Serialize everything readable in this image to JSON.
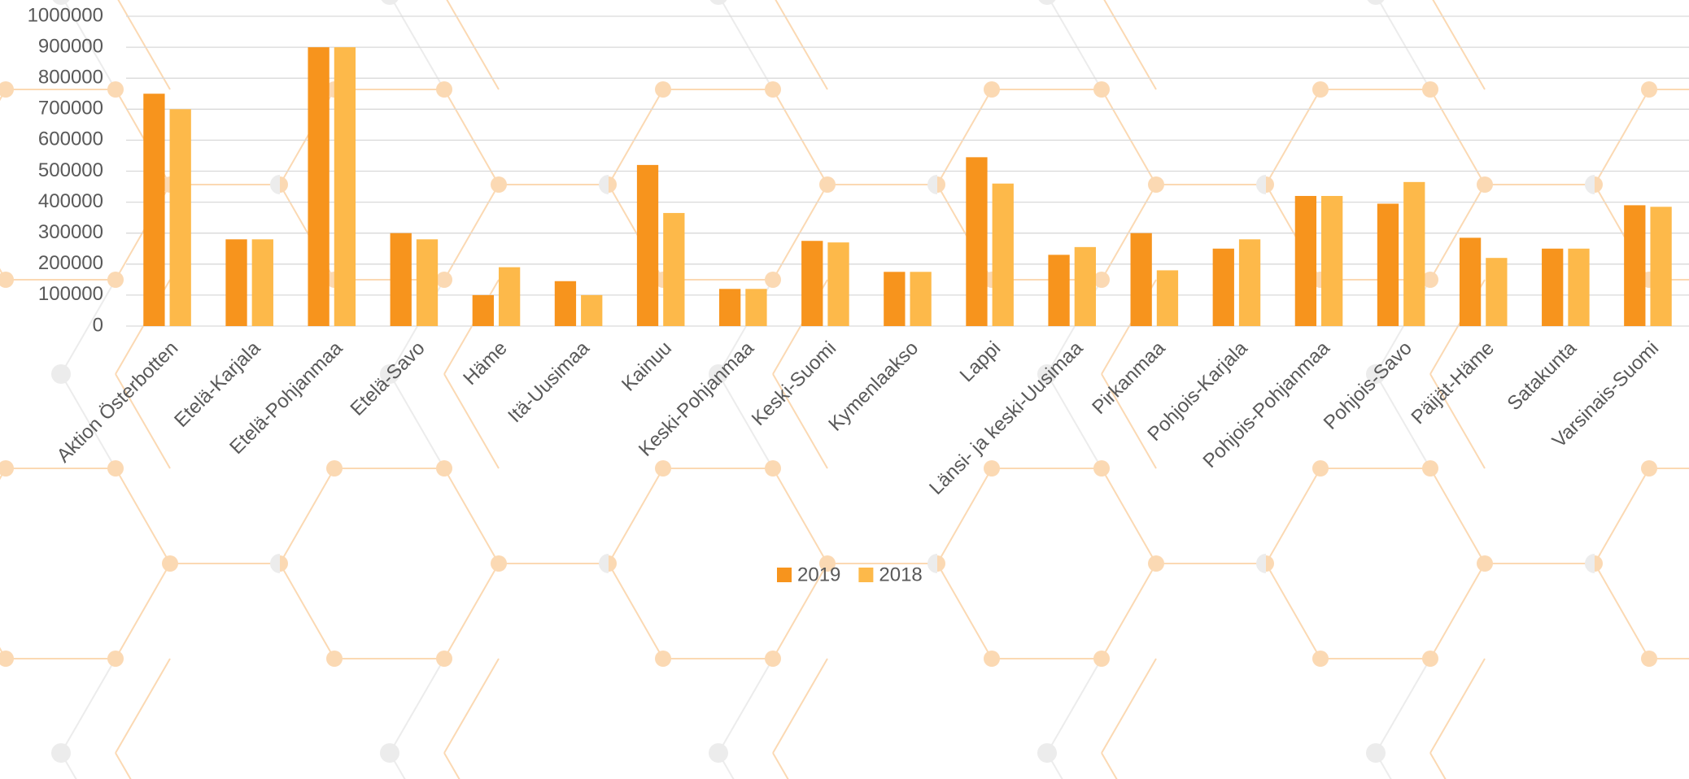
{
  "chart_data": {
    "type": "bar",
    "categories": [
      "Aktion Österbotten",
      "Etelä-Karjala",
      "Etelä-Pohjanmaa",
      "Etelä-Savo",
      "Häme",
      "Itä-Uusimaa",
      "Kainuu",
      "Keski-Pohjanmaa",
      "Keski-Suomi",
      "Kymenlaakso",
      "Lappi",
      "Länsi- ja keski-Uusimaa",
      "Pirkanmaa",
      "Pohjois-Karjala",
      "Pohjois-Pohjanmaa",
      "Pohjois-Savo",
      "Päijät-Häme",
      "Satakunta",
      "Varsinais-Suomi"
    ],
    "series": [
      {
        "name": "2019",
        "color": "#f7941d",
        "values": [
          750000,
          280000,
          900000,
          300000,
          100000,
          145000,
          520000,
          120000,
          275000,
          175000,
          545000,
          230000,
          300000,
          250000,
          420000,
          395000,
          285000,
          250000,
          390000
        ]
      },
      {
        "name": "2018",
        "color": "#fdb94a",
        "values": [
          700000,
          280000,
          900000,
          280000,
          190000,
          100000,
          365000,
          120000,
          270000,
          175000,
          460000,
          255000,
          180000,
          280000,
          420000,
          465000,
          220000,
          250000,
          385000
        ]
      }
    ],
    "ylim": [
      0,
      1000000
    ],
    "yticks": [
      0,
      100000,
      200000,
      300000,
      400000,
      500000,
      600000,
      700000,
      800000,
      900000,
      1000000
    ],
    "grid": true,
    "legend": "bottom"
  }
}
